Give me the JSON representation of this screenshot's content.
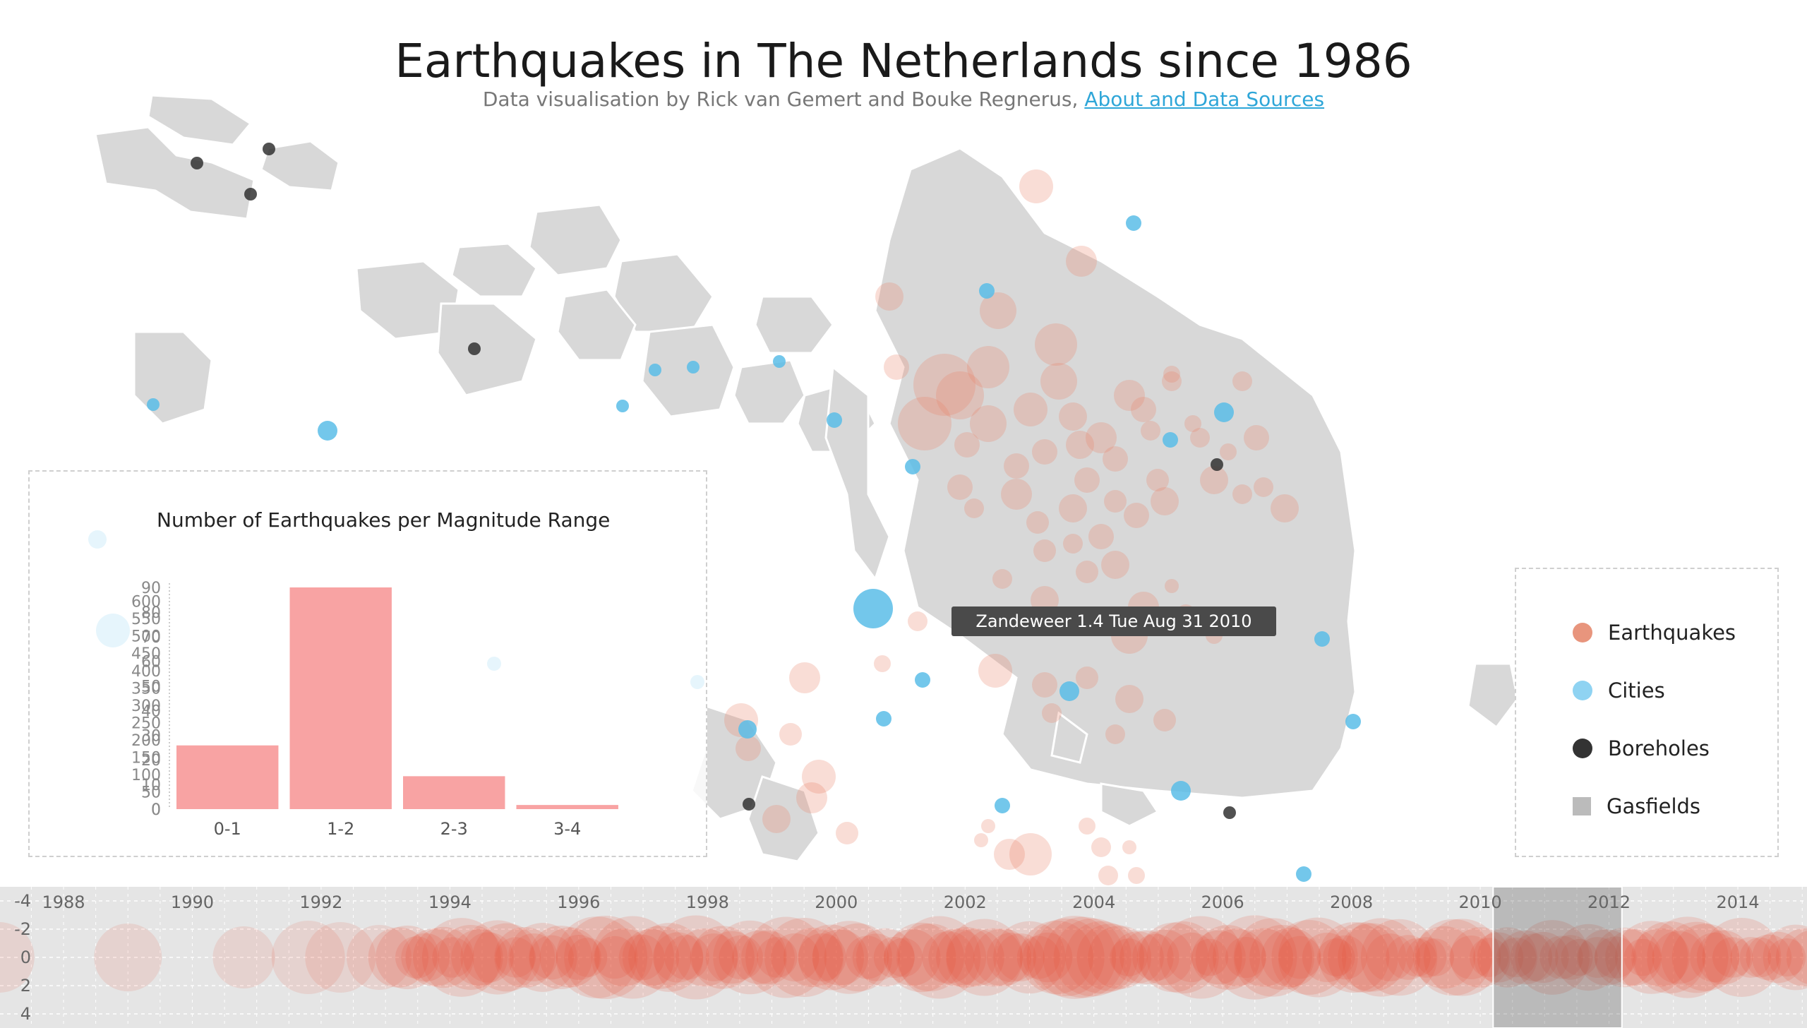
{
  "header": {
    "title": "Earthquakes in The Netherlands since 1986",
    "subtitle_prefix": "Data visualisation by Rick van Gemert and Bouke Regnerus, ",
    "subtitle_link": "About and Data Sources"
  },
  "colors": {
    "earthquake": "#e8866a",
    "city": "#5bbde8",
    "borehole": "#333333",
    "gasfield": "#d6d6d6",
    "histogram_bar": "#f79b9b",
    "timeline_quake": "#e84a2f"
  },
  "tooltip": {
    "text": "Zandeweer 1.4 Tue Aug 31 2010"
  },
  "legend": {
    "items": [
      {
        "label": "Earthquakes",
        "color": "#e8866a",
        "shape": "circle"
      },
      {
        "label": "Cities",
        "color": "#5bbde8",
        "shape": "circle"
      },
      {
        "label": "Boreholes",
        "color": "#333333",
        "shape": "circle"
      },
      {
        "label": "Gasfields",
        "color": "#bbbbbb",
        "shape": "square"
      }
    ]
  },
  "chart_data": [
    {
      "type": "bar",
      "title": "Number of Earthquakes per Magnitude Range",
      "categories": [
        "0-1",
        "1-2",
        "2-3",
        "3-4"
      ],
      "values": [
        184,
        640,
        95,
        12
      ],
      "ylim": [
        0,
        640
      ],
      "yticks_fine": [
        0,
        50,
        100,
        150,
        200,
        250,
        300,
        350,
        400,
        450,
        500,
        550,
        600
      ],
      "yticks_coarse": [
        0,
        10,
        20,
        30,
        40,
        50,
        60,
        70,
        80,
        90
      ]
    },
    {
      "type": "scatter",
      "title": "",
      "x_tick_labels": [
        "1988",
        "1990",
        "1992",
        "1994",
        "1996",
        "1998",
        "2000",
        "2002",
        "2004",
        "2006",
        "2008",
        "2010",
        "2012",
        "2014"
      ],
      "xlim": [
        1986.8,
        2015.0
      ],
      "y_tick_labels": [
        "-4",
        "-2",
        "0",
        "2",
        "4"
      ],
      "ylim": [
        -4.6,
        4.6
      ],
      "brush_range": [
        2010.2,
        2012.2
      ],
      "y": 0
    }
  ]
}
